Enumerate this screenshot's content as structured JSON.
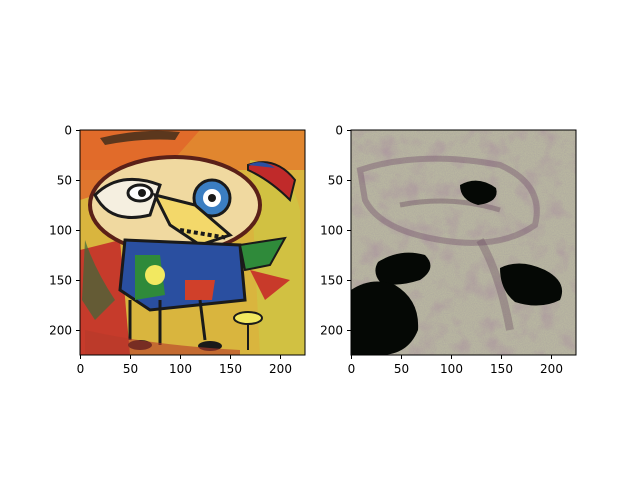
{
  "figure": {
    "background": "#ffffff",
    "panels": [
      {
        "name": "painting",
        "ticks_x": [
          "0",
          "50",
          "100",
          "150",
          "200"
        ],
        "ticks_y": [
          "0",
          "50",
          "100",
          "150",
          "200"
        ]
      },
      {
        "name": "feature-map",
        "ticks_x": [
          "0",
          "50",
          "100",
          "150",
          "200"
        ],
        "ticks_y": [
          "0",
          "50",
          "100",
          "150",
          "200"
        ]
      }
    ]
  },
  "chart_data": [
    {
      "type": "image",
      "title": "",
      "xlabel": "",
      "ylabel": "",
      "xlim": [
        0,
        224
      ],
      "ylim": [
        224,
        0
      ],
      "xticks": [
        0,
        50,
        100,
        150,
        200
      ],
      "yticks": [
        0,
        50,
        100,
        150,
        200
      ],
      "content": "colorful abstract painting of a bird-like creature",
      "colors": {
        "yellow": "#d8b83a",
        "orange": "#e07a2a",
        "red": "#c8402a",
        "blue": "#2a5aa8",
        "green": "#2f8a3a",
        "black": "#1a1a1a"
      }
    },
    {
      "type": "image",
      "title": "",
      "xlabel": "",
      "ylabel": "",
      "xlim": [
        0,
        224
      ],
      "ylim": [
        224,
        0
      ],
      "xticks": [
        0,
        50,
        100,
        150,
        200
      ],
      "yticks": [
        0,
        50,
        100,
        150,
        200
      ],
      "content": "noisy grayish-green texture with dark blobs",
      "colors": {
        "base": "#b8b6a0",
        "purple_tint": "#8a6a7a",
        "dark": "#050805"
      }
    }
  ]
}
